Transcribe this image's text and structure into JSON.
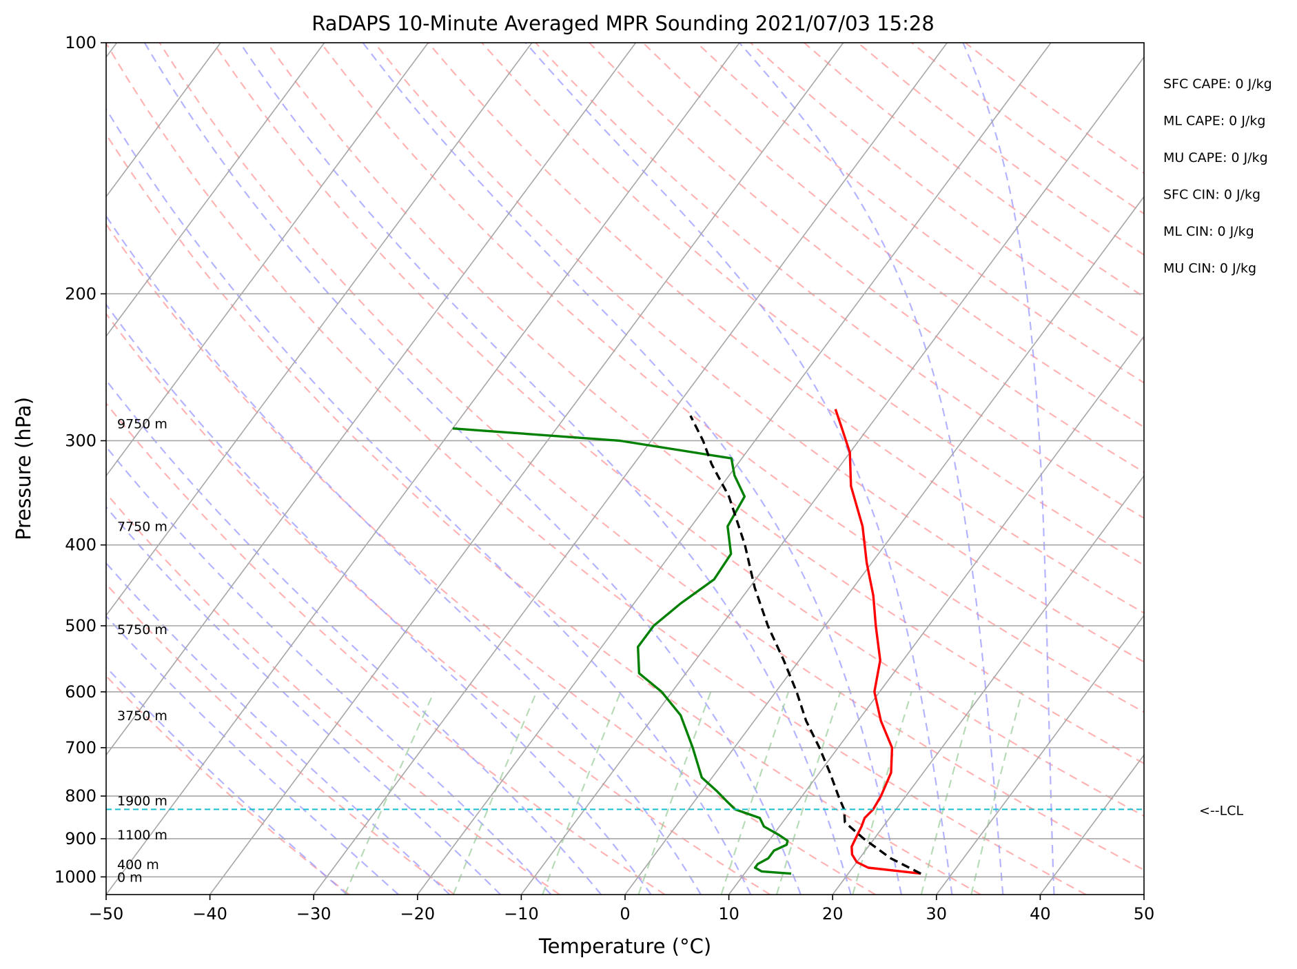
{
  "chart_data": {
    "type": "line",
    "title": "RaDAPS 10-Minute Averaged MPR Sounding 2021/07/03 15:28",
    "xlabel": "Temperature (°C)",
    "ylabel": "Pressure (hPa)",
    "xlim": [
      -50,
      50
    ],
    "ylim": [
      1050,
      100
    ],
    "y_scale": "log",
    "grid": true,
    "x_ticks": [
      "−50",
      "−40",
      "−30",
      "−20",
      "−10",
      "0",
      "10",
      "20",
      "30",
      "40",
      "50"
    ],
    "y_ticks": [
      "100",
      "200",
      "300",
      "400",
      "500",
      "600",
      "700",
      "800",
      "900",
      "1000"
    ],
    "skew": true,
    "colors": {
      "temperature": "#ff0000",
      "dewpoint": "#008000",
      "parcel": "#000000",
      "lcl": "#17becf",
      "isotherm": "#a6a6a6",
      "dry_adiabat": "#ff9999",
      "moist_adiabat": "#9999ff",
      "mixing_ratio": "#99cc99"
    },
    "series": [
      {
        "key": "temperature",
        "points": [
          [
            991,
            27.0
          ],
          [
            975,
            21.5
          ],
          [
            960,
            20.0
          ],
          [
            940,
            19.0
          ],
          [
            920,
            18.4
          ],
          [
            900,
            18.2
          ],
          [
            870,
            17.9
          ],
          [
            850,
            17.6
          ],
          [
            830,
            17.8
          ],
          [
            800,
            17.6
          ],
          [
            750,
            16.9
          ],
          [
            700,
            15.2
          ],
          [
            650,
            12.2
          ],
          [
            600,
            9.5
          ],
          [
            550,
            7.8
          ],
          [
            500,
            4.9
          ],
          [
            460,
            2.5
          ],
          [
            420,
            -0.5
          ],
          [
            380,
            -3.5
          ],
          [
            340,
            -7.5
          ],
          [
            310,
            -10.0
          ],
          [
            290,
            -12.5
          ],
          [
            275,
            -14.5
          ]
        ]
      },
      {
        "key": "dewpoint",
        "points": [
          [
            991,
            14.5
          ],
          [
            985,
            11.5
          ],
          [
            975,
            10.6
          ],
          [
            965,
            10.6
          ],
          [
            950,
            11.2
          ],
          [
            930,
            11.2
          ],
          [
            915,
            12.0
          ],
          [
            905,
            11.8
          ],
          [
            890,
            10.5
          ],
          [
            870,
            8.5
          ],
          [
            850,
            7.5
          ],
          [
            830,
            4.5
          ],
          [
            810,
            3.0
          ],
          [
            790,
            1.5
          ],
          [
            760,
            -1.0
          ],
          [
            700,
            -4.0
          ],
          [
            640,
            -7.5
          ],
          [
            600,
            -11.0
          ],
          [
            570,
            -14.5
          ],
          [
            530,
            -16.5
          ],
          [
            500,
            -16.5
          ],
          [
            470,
            -15.5
          ],
          [
            440,
            -14.0
          ],
          [
            410,
            -14.2
          ],
          [
            380,
            -16.5
          ],
          [
            350,
            -17.0
          ],
          [
            330,
            -19.5
          ],
          [
            315,
            -21.0
          ],
          [
            300,
            -33.0
          ],
          [
            290,
            -50.0
          ]
        ]
      },
      {
        "key": "parcel",
        "points": [
          [
            991,
            27.0
          ],
          [
            950,
            23.0
          ],
          [
            900,
            19.0
          ],
          [
            860,
            16.0
          ],
          [
            830,
            15.0
          ],
          [
            800,
            13.5
          ],
          [
            750,
            11.0
          ],
          [
            700,
            8.2
          ],
          [
            650,
            5.0
          ],
          [
            600,
            2.0
          ],
          [
            550,
            -1.5
          ],
          [
            500,
            -5.5
          ],
          [
            450,
            -9.5
          ],
          [
            400,
            -13.5
          ],
          [
            350,
            -18.5
          ],
          [
            320,
            -22.5
          ],
          [
            300,
            -25.0
          ],
          [
            280,
            -28.0
          ]
        ]
      }
    ],
    "lcl": {
      "pressure": 830,
      "label": "<--LCL"
    },
    "height_labels": [
      {
        "p": 1000,
        "label": "0 m"
      },
      {
        "p": 966,
        "label": "400 m"
      },
      {
        "p": 890,
        "label": "1100 m"
      },
      {
        "p": 810,
        "label": "1900 m"
      },
      {
        "p": 640,
        "label": "3750 m"
      },
      {
        "p": 505,
        "label": "5750 m"
      },
      {
        "p": 380,
        "label": "7750 m"
      },
      {
        "p": 286,
        "label": "9750 m"
      }
    ],
    "annotations": [
      "SFC CAPE: 0 J/kg",
      "ML CAPE: 0 J/kg",
      "MU CAPE: 0 J/kg",
      "SFC CIN: 0 J/kg",
      "ML CIN: 0 J/kg",
      "MU CIN: 0 J/kg"
    ]
  }
}
